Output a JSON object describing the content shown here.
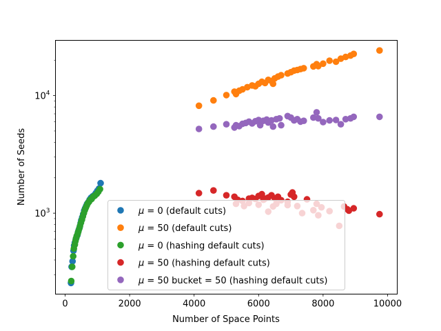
{
  "chart_data": {
    "type": "scatter",
    "title": "",
    "xlabel": "Number of Space Points",
    "ylabel": "Number of Seeds",
    "xlim": [
      -300,
      10300
    ],
    "ylim": [
      205,
      29500
    ],
    "yscale": "log",
    "grid": false,
    "legend_position": "lower-center",
    "xticks": [
      0,
      2000,
      4000,
      6000,
      8000,
      10000
    ],
    "xtick_labels": [
      "0",
      "2000",
      "4000",
      "6000",
      "8000",
      "10000"
    ],
    "yticks": [
      1000,
      10000
    ],
    "ytick_labels": [
      {
        "base": "10",
        "exp": "3"
      },
      {
        "base": "10",
        "exp": "4"
      }
    ],
    "series": [
      {
        "name": "μ = 0 (default cuts)",
        "legend_mu": "μ",
        "legend_rest": " = 0 (default cuts)",
        "color": "#1f77b4",
        "x": [
          180,
          200,
          230,
          260,
          280,
          300,
          330,
          350,
          380,
          400,
          420,
          450,
          480,
          500,
          530,
          560,
          590,
          620,
          650,
          680,
          720,
          760,
          800,
          850,
          900,
          950,
          1000,
          1050,
          1100
        ],
        "y": [
          255,
          350,
          390,
          480,
          530,
          560,
          600,
          620,
          650,
          690,
          720,
          760,
          820,
          870,
          920,
          980,
          1050,
          1100,
          1150,
          1200,
          1240,
          1300,
          1350,
          1390,
          1420,
          1480,
          1550,
          1620,
          1800
        ]
      },
      {
        "name": "μ = 50 (default cuts)",
        "legend_mu": "μ",
        "legend_rest": " = 50 (default cuts)",
        "color": "#ff7f0e",
        "x": [
          4150,
          4600,
          5000,
          5250,
          5300,
          5400,
          5500,
          5650,
          5800,
          5900,
          6000,
          6100,
          6200,
          6300,
          6400,
          6450,
          6500,
          6600,
          6700,
          6900,
          7000,
          7100,
          7200,
          7300,
          7400,
          7700,
          7800,
          7850,
          8000,
          8200,
          8400,
          8550,
          8700,
          8850,
          8950,
          9750
        ],
        "y": [
          8200,
          9100,
          10100,
          10800,
          10300,
          11000,
          11300,
          11800,
          12200,
          12000,
          12600,
          13100,
          12800,
          13600,
          13300,
          12600,
          14000,
          14500,
          14900,
          15400,
          15800,
          16300,
          16500,
          16800,
          17100,
          17700,
          18500,
          17800,
          18700,
          19800,
          19400,
          20600,
          21300,
          21900,
          22600,
          24200
        ]
      },
      {
        "name": "μ = 0 (hashing default cuts)",
        "legend_mu": "μ",
        "legend_rest": " = 0 (hashing default cuts)",
        "color": "#2ca02c",
        "x": [
          190,
          220,
          250,
          270,
          300,
          320,
          340,
          360,
          390,
          410,
          440,
          460,
          490,
          520,
          550,
          580,
          610,
          640,
          670,
          700,
          740,
          780,
          820,
          870,
          920,
          980,
          1030,
          1080
        ],
        "y": [
          265,
          350,
          430,
          500,
          540,
          580,
          610,
          640,
          670,
          700,
          740,
          780,
          830,
          880,
          940,
          1000,
          1060,
          1110,
          1160,
          1210,
          1250,
          1300,
          1320,
          1380,
          1410,
          1460,
          1520,
          1600
        ]
      },
      {
        "name": "μ = 50 (hashing default cuts)",
        "legend_mu": "μ",
        "legend_rest": " = 50 (hashing default cuts)",
        "color": "#d62728",
        "x": [
          4150,
          4600,
          5000,
          5250,
          5350,
          5500,
          5700,
          5800,
          5900,
          6000,
          6100,
          6150,
          6200,
          6300,
          6400,
          6500,
          6600,
          6700,
          6900,
          7000,
          7050,
          7100,
          7500,
          7800,
          8650,
          8750,
          8800,
          8950,
          9750,
          5300,
          5550,
          5700,
          6000,
          6300,
          6450,
          6550,
          6900,
          7200,
          7350,
          7700,
          7850,
          7950,
          8200,
          8500
        ],
        "y": [
          1480,
          1560,
          1420,
          1380,
          1300,
          1270,
          1330,
          1350,
          1320,
          1400,
          1450,
          1300,
          1330,
          1360,
          1420,
          1340,
          1380,
          1290,
          1250,
          1440,
          1500,
          1380,
          1310,
          1200,
          1140,
          1080,
          1050,
          1100,
          980,
          1200,
          1150,
          1220,
          1180,
          1030,
          1140,
          1200,
          1170,
          1150,
          1000,
          1060,
          960,
          1120,
          1040,
          780
        ]
      },
      {
        "name": "μ = 50 bucket = 50 (hashing default cuts)",
        "legend_mu": "μ",
        "legend_rest": " = 50 bucket = 50 (hashing default cuts)",
        "color": "#9467bd",
        "x": [
          4150,
          4600,
          5000,
          5250,
          5300,
          5400,
          5500,
          5600,
          5700,
          5800,
          5900,
          6000,
          6050,
          6150,
          6250,
          6300,
          6400,
          6450,
          6550,
          6650,
          6700,
          6900,
          7000,
          7100,
          7200,
          7300,
          7400,
          7700,
          7800,
          7850,
          8000,
          8200,
          8400,
          8550,
          8700,
          8850,
          8950,
          9750
        ],
        "y": [
          5200,
          5450,
          5700,
          5350,
          5600,
          5500,
          5750,
          5850,
          6000,
          5800,
          6050,
          6200,
          5600,
          6100,
          6250,
          5900,
          6150,
          5450,
          6300,
          6400,
          5600,
          6700,
          6500,
          6150,
          6300,
          6000,
          6100,
          6500,
          7200,
          6400,
          5950,
          6150,
          6200,
          5700,
          6300,
          6400,
          6600,
          6600
        ]
      }
    ]
  }
}
